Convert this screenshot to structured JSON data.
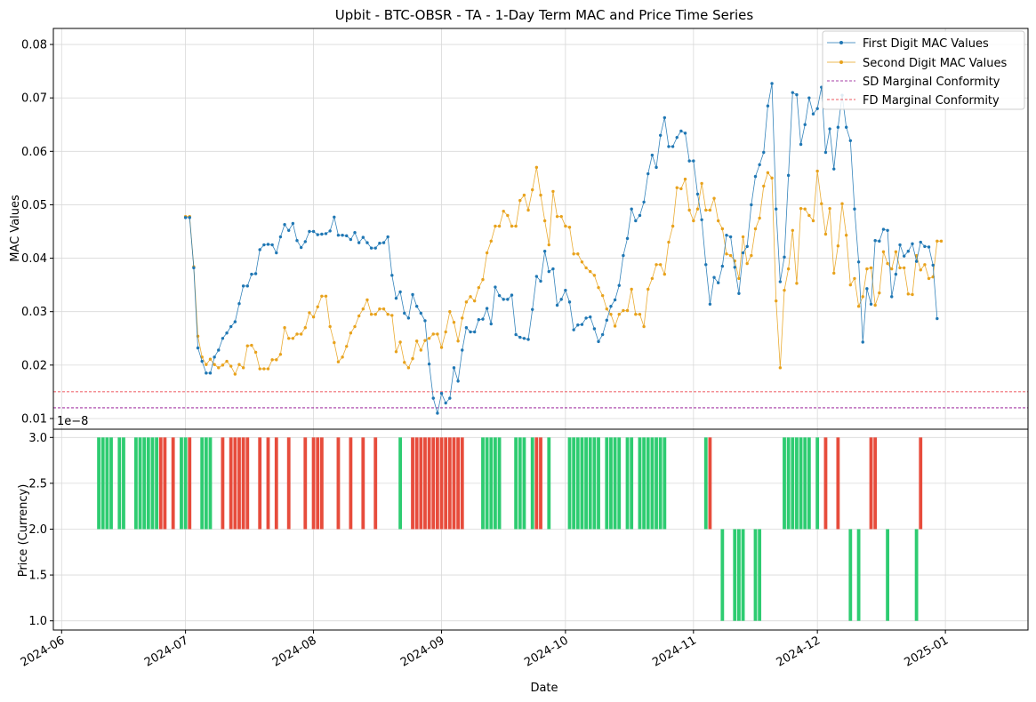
{
  "chart_data": [
    {
      "type": "line",
      "title": "Upbit - BTC-OBSR - TA - 1-Day Term MAC and Price Time Series",
      "xlabel": "",
      "ylabel": "MAC Values",
      "ylim": [
        0.008,
        0.083
      ],
      "yticks": [
        "0.01",
        "0.02",
        "0.03",
        "0.04",
        "0.05",
        "0.06",
        "0.07",
        "0.08"
      ],
      "ytick_values": [
        0.01,
        0.02,
        0.03,
        0.04,
        0.05,
        0.06,
        0.07,
        0.08
      ],
      "legend": [
        "First Digit MAC Values",
        "Second Digit MAC Values",
        "SD Marginal Conformity",
        "FD Marginal Conformity"
      ],
      "legend_position": "top-right",
      "grid": true,
      "x_start": "2024-07-01",
      "series": [
        {
          "name": "First Digit MAC Values",
          "color": "#1f77b4",
          "values": [
            0.0476,
            0.0476,
            0.0382,
            0.0232,
            0.0207,
            0.0185,
            0.0185,
            0.0215,
            0.0228,
            0.025,
            0.026,
            0.0272,
            0.0281,
            0.0315,
            0.0348,
            0.0348,
            0.037,
            0.0371,
            0.0416,
            0.0425,
            0.0426,
            0.0425,
            0.041,
            0.044,
            0.0463,
            0.0452,
            0.0465,
            0.0433,
            0.042,
            0.0431,
            0.045,
            0.045,
            0.0444,
            0.0445,
            0.0446,
            0.0451,
            0.0477,
            0.0443,
            0.0443,
            0.0442,
            0.0435,
            0.0448,
            0.0429,
            0.0439,
            0.0429,
            0.0419,
            0.0419,
            0.0428,
            0.0429,
            0.044,
            0.0368,
            0.0325,
            0.0337,
            0.0297,
            0.0288,
            0.0332,
            0.031,
            0.0297,
            0.0283,
            0.0202,
            0.0138,
            0.011,
            0.0147,
            0.0129,
            0.0138,
            0.0195,
            0.017,
            0.0228,
            0.027,
            0.0262,
            0.0262,
            0.0285,
            0.0286,
            0.0306,
            0.0277,
            0.0346,
            0.033,
            0.0323,
            0.0323,
            0.0331,
            0.0257,
            0.0252,
            0.025,
            0.0248,
            0.0304,
            0.0366,
            0.0357,
            0.0413,
            0.0375,
            0.038,
            0.0312,
            0.0323,
            0.034,
            0.0318,
            0.0266,
            0.0275,
            0.0276,
            0.0288,
            0.029,
            0.0268,
            0.0244,
            0.0257,
            0.0284,
            0.031,
            0.0322,
            0.0349,
            0.0405,
            0.0437,
            0.0492,
            0.047,
            0.048,
            0.0505,
            0.0558,
            0.0593,
            0.057,
            0.063,
            0.0663,
            0.0609,
            0.0609,
            0.0626,
            0.0638,
            0.0634,
            0.0582,
            0.0582,
            0.052,
            0.0472,
            0.0388,
            0.0314,
            0.0364,
            0.0354,
            0.0385,
            0.0443,
            0.044,
            0.0383,
            0.0334,
            0.041,
            0.0422,
            0.05,
            0.0553,
            0.0575,
            0.0598,
            0.0685,
            0.0727,
            0.0492,
            0.0356,
            0.0402,
            0.0555,
            0.071,
            0.0706,
            0.0613,
            0.065,
            0.07,
            0.067,
            0.068,
            0.072,
            0.0598,
            0.0642,
            0.0567,
            0.0645,
            0.0705,
            0.0645,
            0.062,
            0.0492,
            0.0393,
            0.0243,
            0.0343,
            0.0314,
            0.0433,
            0.0432,
            0.0454,
            0.0452,
            0.0328,
            0.037,
            0.0425,
            0.0404,
            0.0413,
            0.0427,
            0.0394,
            0.043,
            0.0422,
            0.0421,
            0.0387,
            0.0287
          ]
        },
        {
          "name": "Second Digit MAC Values",
          "color": "#e8a21c",
          "values": [
            0.0478,
            0.0478,
            0.0384,
            0.0254,
            0.0215,
            0.0201,
            0.0211,
            0.0201,
            0.0195,
            0.02,
            0.0207,
            0.0198,
            0.0183,
            0.0201,
            0.0195,
            0.0236,
            0.0237,
            0.0224,
            0.0193,
            0.0193,
            0.0193,
            0.021,
            0.021,
            0.022,
            0.027,
            0.025,
            0.025,
            0.0258,
            0.0258,
            0.027,
            0.0298,
            0.029,
            0.0309,
            0.0329,
            0.0329,
            0.0272,
            0.0242,
            0.0206,
            0.0215,
            0.0235,
            0.026,
            0.0272,
            0.0292,
            0.0305,
            0.0322,
            0.0295,
            0.0295,
            0.0305,
            0.0305,
            0.0295,
            0.0293,
            0.0225,
            0.0243,
            0.0205,
            0.0195,
            0.0212,
            0.0245,
            0.0228,
            0.0246,
            0.025,
            0.0258,
            0.0258,
            0.0233,
            0.0262,
            0.03,
            0.028,
            0.0245,
            0.0288,
            0.0318,
            0.0328,
            0.032,
            0.0345,
            0.036,
            0.041,
            0.0432,
            0.046,
            0.046,
            0.0488,
            0.048,
            0.046,
            0.046,
            0.0508,
            0.0518,
            0.049,
            0.0528,
            0.057,
            0.0518,
            0.047,
            0.0425,
            0.0525,
            0.0478,
            0.0478,
            0.046,
            0.0458,
            0.0408,
            0.0408,
            0.0393,
            0.0382,
            0.0375,
            0.0368,
            0.0345,
            0.033,
            0.0305,
            0.0295,
            0.0273,
            0.0295,
            0.0302,
            0.0302,
            0.0342,
            0.0295,
            0.0295,
            0.0272,
            0.0342,
            0.0362,
            0.0388,
            0.0388,
            0.037,
            0.043,
            0.046,
            0.0532,
            0.053,
            0.0548,
            0.049,
            0.047,
            0.0492,
            0.054,
            0.049,
            0.049,
            0.0512,
            0.047,
            0.0455,
            0.0408,
            0.0405,
            0.0395,
            0.0362,
            0.044,
            0.039,
            0.0405,
            0.0455,
            0.0475,
            0.0535,
            0.056,
            0.055,
            0.032,
            0.0195,
            0.034,
            0.038,
            0.0452,
            0.0353,
            0.0493,
            0.0492,
            0.048,
            0.047,
            0.0563,
            0.0502,
            0.0445,
            0.0493,
            0.0372,
            0.0423,
            0.0502,
            0.0443,
            0.035,
            0.0362,
            0.031,
            0.0328,
            0.038,
            0.0382,
            0.0312,
            0.0335,
            0.0412,
            0.039,
            0.038,
            0.0412,
            0.0382,
            0.0382,
            0.0333,
            0.0332,
            0.0405,
            0.0378,
            0.0388,
            0.0362,
            0.0365,
            0.0432,
            0.0432
          ]
        }
      ],
      "hlines": [
        {
          "name": "SD Marginal Conformity",
          "value": 0.012,
          "color": "#8b008b"
        },
        {
          "name": "FD Marginal Conformity",
          "value": 0.015,
          "color": "#e8212b"
        }
      ]
    },
    {
      "type": "bar",
      "xlabel": "Date",
      "ylabel": "Price (Currency)",
      "offset_text": "1e−8",
      "ylim": [
        0.9,
        3.09
      ],
      "yticks": [
        "1.0",
        "1.5",
        "2.0",
        "2.5",
        "3.0"
      ],
      "ytick_values": [
        1.0,
        1.5,
        2.0,
        2.5,
        3.0
      ],
      "xticks": [
        "2024-06",
        "2024-07",
        "2024-08",
        "2024-09",
        "2024-10",
        "2024-11",
        "2024-12",
        "2025-01"
      ],
      "xtick_dates": [
        "2024-06-01",
        "2024-07-01",
        "2024-08-01",
        "2024-09-01",
        "2024-10-01",
        "2024-11-01",
        "2024-12-01",
        "2025-01-01"
      ],
      "xlim": [
        "2024-05-30",
        "2025-01-21"
      ],
      "x_start": "2024-06-10",
      "grid": true,
      "up_color": "#2ecc71",
      "down_color": "#e74c3c",
      "candles": "GGGG-GG--GGGGGGRR-R-GGR--GGG--R-RRRRR--R-R-R--R---R-RRR---R--R--R--R-----G--RRRRRRRRRRRRR----GGGGG---GGG-GRR-G----GGGGGGGG-GGGG-GG-GGGGGGG---------GR--L--LLL--LL-----GGGGGGG-G-R--R--L-L--RR--L------LR",
      "candle_values": {
        "G": [
          2.0,
          3.0
        ],
        "R": [
          2.0,
          3.0
        ],
        "L": [
          1.0,
          2.0
        ]
      }
    }
  ]
}
